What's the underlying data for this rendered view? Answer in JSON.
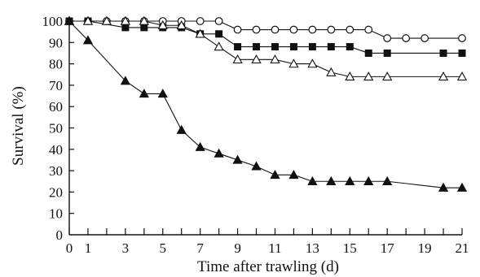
{
  "chart_data": {
    "type": "line",
    "xlabel": "Time after trawling (d)",
    "ylabel": "Survival (%)",
    "xlim": [
      0,
      21
    ],
    "ylim": [
      0,
      100
    ],
    "x_ticks": [
      0,
      1,
      2,
      3,
      4,
      5,
      6,
      7,
      8,
      9,
      10,
      11,
      12,
      13,
      14,
      15,
      16,
      17,
      18,
      19,
      20,
      21
    ],
    "x_tick_labels": [
      "0",
      "1",
      "3",
      "5",
      "7",
      "9",
      "11",
      "13",
      "15",
      "17",
      "19",
      "21"
    ],
    "y_tick_labels": [
      "10",
      "20",
      "30",
      "40",
      "50",
      "60",
      "70",
      "80",
      "90",
      "100"
    ],
    "grid": false,
    "legend": "none",
    "series": [
      {
        "marker": "open-circle",
        "points": [
          [
            0,
            100
          ],
          [
            1,
            100
          ],
          [
            2,
            100
          ],
          [
            3,
            100
          ],
          [
            4,
            100
          ],
          [
            5,
            100
          ],
          [
            6,
            100
          ],
          [
            7,
            100
          ],
          [
            8,
            100
          ],
          [
            9,
            96
          ],
          [
            10,
            96
          ],
          [
            11,
            96
          ],
          [
            12,
            96
          ],
          [
            13,
            96
          ],
          [
            14,
            96
          ],
          [
            15,
            96
          ],
          [
            16,
            96
          ],
          [
            17,
            92
          ],
          [
            18,
            92
          ],
          [
            19,
            92
          ],
          [
            21,
            92
          ]
        ]
      },
      {
        "marker": "filled-square",
        "points": [
          [
            0,
            100
          ],
          [
            1,
            100
          ],
          [
            3,
            97
          ],
          [
            4,
            97
          ],
          [
            5,
            97
          ],
          [
            6,
            97
          ],
          [
            7,
            94
          ],
          [
            8,
            94
          ],
          [
            9,
            88
          ],
          [
            10,
            88
          ],
          [
            11,
            88
          ],
          [
            12,
            88
          ],
          [
            13,
            88
          ],
          [
            14,
            88
          ],
          [
            15,
            88
          ],
          [
            16,
            85
          ],
          [
            17,
            85
          ],
          [
            20,
            85
          ],
          [
            21,
            85
          ]
        ]
      },
      {
        "marker": "open-triangle",
        "points": [
          [
            0,
            100
          ],
          [
            1,
            100
          ],
          [
            2,
            100
          ],
          [
            3,
            100
          ],
          [
            4,
            100
          ],
          [
            5,
            98
          ],
          [
            6,
            98
          ],
          [
            7,
            94
          ],
          [
            8,
            88
          ],
          [
            9,
            82
          ],
          [
            10,
            82
          ],
          [
            11,
            82
          ],
          [
            12,
            80
          ],
          [
            13,
            80
          ],
          [
            14,
            76
          ],
          [
            15,
            74
          ],
          [
            16,
            74
          ],
          [
            17,
            74
          ],
          [
            20,
            74
          ],
          [
            21,
            74
          ]
        ]
      },
      {
        "marker": "filled-triangle",
        "points": [
          [
            0,
            100
          ],
          [
            1,
            91
          ],
          [
            3,
            72
          ],
          [
            4,
            66
          ],
          [
            5,
            66
          ],
          [
            6,
            49
          ],
          [
            7,
            41
          ],
          [
            8,
            38
          ],
          [
            9,
            35
          ],
          [
            10,
            32
          ],
          [
            11,
            28
          ],
          [
            12,
            28
          ],
          [
            13,
            25
          ],
          [
            14,
            25
          ],
          [
            15,
            25
          ],
          [
            16,
            25
          ],
          [
            17,
            25
          ],
          [
            20,
            22
          ],
          [
            21,
            22
          ]
        ]
      }
    ]
  }
}
